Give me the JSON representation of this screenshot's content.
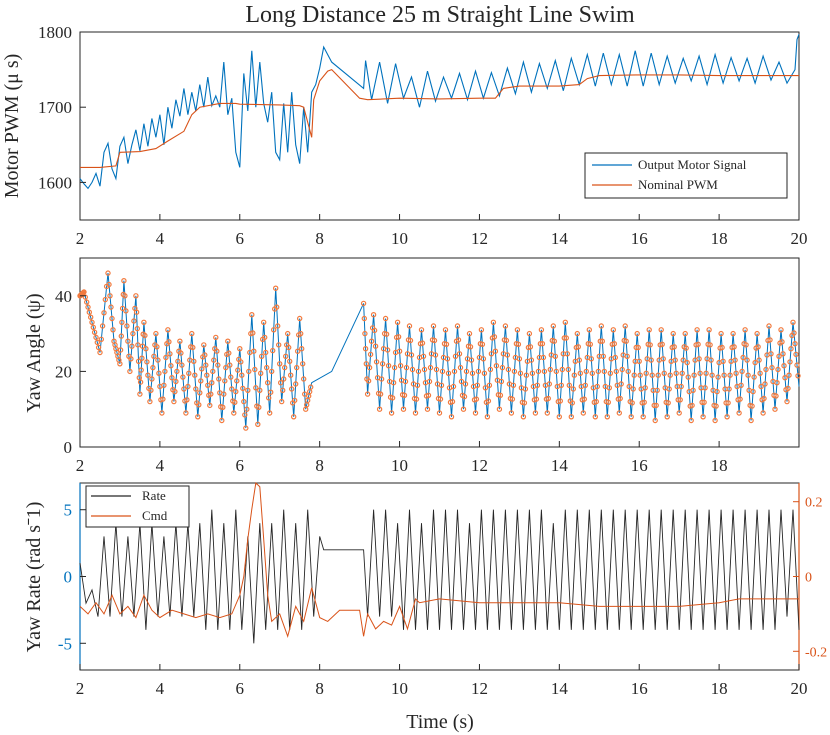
{
  "title": "Long Distance 25 m Straight Line Swim",
  "colors": {
    "blue": "#0072bd",
    "orange": "#d95319",
    "black": "#262626",
    "marker": "#f27a3e"
  },
  "chart_data": [
    {
      "type": "line",
      "ylabel": "Motor PWM (μ s)",
      "xlim": [
        2,
        20
      ],
      "ylim": [
        1550,
        1800
      ],
      "xticks": [
        "2",
        "4",
        "6",
        "8",
        "10",
        "12",
        "14",
        "16",
        "18",
        "20"
      ],
      "yticks": [
        "1600",
        "1700",
        "1800"
      ],
      "legend": {
        "position": "bottom-right",
        "entries": [
          "Output Motor Signal",
          "Nominal PWM"
        ]
      },
      "series": [
        {
          "name": "Output Motor Signal",
          "x": [
            2,
            2.1,
            2.2,
            2.3,
            2.4,
            2.5,
            2.6,
            2.7,
            2.8,
            2.9,
            3,
            3.1,
            3.2,
            3.3,
            3.4,
            3.5,
            3.6,
            3.7,
            3.8,
            3.9,
            4,
            4.1,
            4.2,
            4.3,
            4.4,
            4.5,
            4.6,
            4.7,
            4.8,
            4.9,
            5,
            5.1,
            5.2,
            5.3,
            5.4,
            5.5,
            5.6,
            5.7,
            5.8,
            5.9,
            6,
            6.1,
            6.2,
            6.3,
            6.4,
            6.5,
            6.6,
            6.7,
            6.8,
            6.9,
            7,
            7.1,
            7.2,
            7.3,
            7.4,
            7.5,
            7.6,
            7.7,
            7.8,
            7.9,
            8,
            8.1,
            8.2,
            8.3,
            9.1,
            9.15,
            9.3,
            9.5,
            9.7,
            9.9,
            10.1,
            10.3,
            10.5,
            10.7,
            10.9,
            11.1,
            11.3,
            11.5,
            11.7,
            11.9,
            12.1,
            12.3,
            12.5,
            12.7,
            12.9,
            13.1,
            13.3,
            13.5,
            13.7,
            13.9,
            14.1,
            14.3,
            14.5,
            14.7,
            14.9,
            15.1,
            15.3,
            15.5,
            15.7,
            15.9,
            16.1,
            16.3,
            16.5,
            16.7,
            16.9,
            17.1,
            17.3,
            17.5,
            17.7,
            17.9,
            18.1,
            18.3,
            18.5,
            18.7,
            18.9,
            19.1,
            19.3,
            19.5,
            19.7,
            19.9,
            19.95,
            20
          ],
          "values": [
            1605,
            1598,
            1592,
            1600,
            1612,
            1595,
            1640,
            1652,
            1618,
            1605,
            1648,
            1660,
            1625,
            1650,
            1670,
            1642,
            1678,
            1648,
            1685,
            1660,
            1690,
            1650,
            1700,
            1672,
            1710,
            1688,
            1725,
            1690,
            1720,
            1695,
            1730,
            1700,
            1740,
            1702,
            1715,
            1700,
            1760,
            1690,
            1712,
            1640,
            1620,
            1745,
            1695,
            1775,
            1700,
            1760,
            1705,
            1680,
            1720,
            1640,
            1630,
            1705,
            1640,
            1720,
            1650,
            1625,
            1700,
            1640,
            1720,
            1730,
            1752,
            1780,
            1770,
            1760,
            1725,
            1762,
            1710,
            1760,
            1705,
            1758,
            1712,
            1740,
            1700,
            1748,
            1708,
            1740,
            1712,
            1745,
            1710,
            1748,
            1712,
            1746,
            1715,
            1752,
            1718,
            1760,
            1720,
            1758,
            1725,
            1762,
            1722,
            1765,
            1730,
            1770,
            1728,
            1772,
            1730,
            1770,
            1728,
            1775,
            1728,
            1772,
            1730,
            1768,
            1732,
            1765,
            1735,
            1768,
            1730,
            1770,
            1732,
            1766,
            1735,
            1765,
            1732,
            1768,
            1736,
            1760,
            1732,
            1750,
            1790,
            1797
          ]
        },
        {
          "name": "Nominal PWM",
          "x": [
            2,
            2.5,
            2.9,
            3.0,
            3.5,
            3.9,
            4.2,
            4.6,
            4.8,
            5.0,
            5.5,
            5.9,
            6.0,
            7.0,
            7.5,
            7.6,
            7.8,
            7.85,
            8.0,
            8.2,
            8.3,
            9.0,
            9.2,
            10.0,
            11.0,
            12.0,
            12.4,
            12.6,
            13.0,
            14.0,
            14.5,
            14.7,
            15.0,
            16.0,
            17.0,
            18.0,
            19.0,
            20.0
          ],
          "values": [
            1620,
            1620,
            1622,
            1640,
            1641,
            1645,
            1655,
            1668,
            1690,
            1700,
            1705,
            1705,
            1704,
            1703,
            1702,
            1700,
            1660,
            1710,
            1735,
            1748,
            1750,
            1712,
            1710,
            1712,
            1711,
            1712,
            1712,
            1725,
            1728,
            1728,
            1730,
            1738,
            1742,
            1743,
            1743,
            1742,
            1742,
            1742
          ]
        }
      ]
    },
    {
      "type": "line",
      "ylabel": "Yaw Angle (ψ)",
      "xlim": [
        2,
        20
      ],
      "ylim": [
        0,
        50
      ],
      "xticks": [
        "2",
        "4",
        "6",
        "8",
        "10",
        "12",
        "14",
        "16",
        "18"
      ],
      "yticks": [
        "0",
        "20",
        "40"
      ],
      "series": [
        {
          "name": "Yaw Angle",
          "x": [
            2,
            2.1,
            2.3,
            2.5,
            2.7,
            2.85,
            3.0,
            3.1,
            3.25,
            3.4,
            3.5,
            3.6,
            3.75,
            3.9,
            4.05,
            4.2,
            4.35,
            4.5,
            4.65,
            4.8,
            4.95,
            5.1,
            5.25,
            5.4,
            5.55,
            5.7,
            5.85,
            6.0,
            6.15,
            6.3,
            6.45,
            6.6,
            6.75,
            6.9,
            7.05,
            7.2,
            7.35,
            7.5,
            7.65,
            7.8,
            8.3,
            9.1,
            9.2,
            9.35,
            9.5,
            9.65,
            9.8,
            9.95,
            10.1,
            10.25,
            10.4,
            10.55,
            10.7,
            10.85,
            11.0,
            11.15,
            11.3,
            11.45,
            11.6,
            11.75,
            11.9,
            12.05,
            12.2,
            12.35,
            12.5,
            12.65,
            12.8,
            12.95,
            13.1,
            13.25,
            13.4,
            13.55,
            13.7,
            13.85,
            14.0,
            14.15,
            14.3,
            14.45,
            14.6,
            14.75,
            14.9,
            15.05,
            15.2,
            15.35,
            15.5,
            15.65,
            15.8,
            15.95,
            16.1,
            16.25,
            16.4,
            16.55,
            16.7,
            16.85,
            17.0,
            17.15,
            17.3,
            17.45,
            17.6,
            17.75,
            17.9,
            18.05,
            18.2,
            18.35,
            18.5,
            18.65,
            18.8,
            18.95,
            19.1,
            19.25,
            19.4,
            19.55,
            19.7,
            19.85,
            20
          ],
          "values": [
            40,
            41,
            33,
            25,
            46,
            28,
            22,
            44,
            20,
            40,
            14,
            33,
            12,
            30,
            9,
            31,
            12,
            28,
            9,
            30,
            8,
            27,
            11,
            29,
            7,
            28,
            9,
            26,
            5,
            35,
            6,
            33,
            9,
            42,
            12,
            30,
            8,
            34,
            10,
            17,
            20,
            38,
            14,
            35,
            10,
            34,
            9,
            33,
            10,
            32,
            9,
            31,
            10,
            32,
            9,
            31,
            8,
            32,
            10,
            30,
            9,
            31,
            8,
            33,
            10,
            32,
            9,
            31,
            8,
            30,
            9,
            31,
            9,
            32,
            8,
            33,
            8,
            30,
            9,
            31,
            8,
            32,
            8,
            31,
            9,
            32,
            8,
            30,
            8,
            31,
            7,
            31,
            8,
            30,
            9,
            30,
            7,
            31,
            8,
            31,
            7,
            30,
            8,
            30,
            9,
            31,
            7,
            30,
            9,
            32,
            10,
            31,
            12,
            33,
            16
          ]
        }
      ]
    },
    {
      "type": "line",
      "xlabel": "Time (s)",
      "ylabel": "Yaw Rate (rad sˉ1)",
      "xlim": [
        2,
        20
      ],
      "ylim": [
        -7,
        7
      ],
      "ylim_right": [
        -0.25,
        0.25
      ],
      "xticks": [
        "2",
        "4",
        "6",
        "8",
        "10",
        "12",
        "14",
        "16",
        "18",
        "20"
      ],
      "yticks": [
        "-5",
        "0",
        "5"
      ],
      "yticks_right": [
        "-0.2",
        "0",
        "0.2"
      ],
      "legend": {
        "position": "top-left",
        "entries": [
          "Rate",
          "Cmd"
        ]
      },
      "series": [
        {
          "name": "Rate",
          "axis": "left",
          "x": [
            2,
            2.15,
            2.3,
            2.45,
            2.6,
            2.75,
            2.9,
            3.05,
            3.2,
            3.35,
            3.5,
            3.65,
            3.8,
            3.95,
            4.1,
            4.25,
            4.4,
            4.55,
            4.7,
            4.85,
            5.0,
            5.15,
            5.3,
            5.45,
            5.6,
            5.75,
            5.9,
            6.05,
            6.2,
            6.35,
            6.5,
            6.65,
            6.8,
            6.95,
            7.1,
            7.25,
            7.4,
            7.55,
            7.7,
            7.85,
            8.0,
            8.1,
            9.1,
            9.2,
            9.35,
            9.5,
            9.65,
            9.8,
            9.95,
            10.1,
            10.25,
            10.4,
            10.55,
            10.7,
            10.85,
            11.0,
            11.15,
            11.3,
            11.45,
            11.6,
            11.75,
            11.9,
            12.05,
            12.2,
            12.35,
            12.5,
            12.65,
            12.8,
            12.95,
            13.1,
            13.25,
            13.4,
            13.55,
            13.7,
            13.85,
            14.0,
            14.15,
            14.3,
            14.45,
            14.6,
            14.75,
            14.9,
            15.05,
            15.2,
            15.35,
            15.5,
            15.65,
            15.8,
            15.95,
            16.1,
            16.25,
            16.4,
            16.55,
            16.7,
            16.85,
            17.0,
            17.15,
            17.3,
            17.45,
            17.6,
            17.75,
            17.9,
            18.05,
            18.2,
            18.35,
            18.5,
            18.65,
            18.8,
            18.95,
            19.1,
            19.25,
            19.4,
            19.55,
            19.7,
            19.85,
            20
          ],
          "values": [
            1,
            -2,
            -1,
            -3,
            3,
            -3,
            4,
            -3,
            3,
            -3,
            4,
            -4,
            4,
            -3,
            3,
            -3,
            4,
            -3,
            4,
            -3,
            4,
            -4,
            5,
            -4,
            4,
            -4,
            5,
            -4,
            3,
            -5,
            4,
            -4,
            4,
            -4,
            5,
            -4,
            4,
            -4,
            5,
            -3,
            3,
            2,
            2,
            -3,
            5,
            -3,
            5,
            -3,
            4,
            -4,
            5,
            -4,
            4,
            -4,
            5,
            -4,
            5,
            -4,
            5,
            -4,
            4,
            -4,
            5,
            -4,
            5,
            -4,
            5,
            -4,
            5,
            -4,
            5,
            -4,
            5,
            -4,
            4,
            -4,
            5,
            -4,
            5,
            -4,
            5,
            -4,
            5,
            -4,
            5,
            -4,
            5,
            -4,
            5,
            -4,
            5,
            -4,
            5,
            -4,
            5,
            -4,
            5,
            -4,
            5,
            -4,
            5,
            -4,
            5,
            -4,
            5,
            -4,
            5,
            -4,
            5,
            -4,
            5,
            -4,
            5,
            -3,
            5,
            -4
          ]
        },
        {
          "name": "Cmd",
          "axis": "right",
          "x": [
            2,
            2.2,
            2.4,
            2.6,
            2.8,
            3.0,
            3.2,
            3.4,
            3.6,
            3.8,
            4.0,
            4.3,
            4.6,
            4.9,
            5.2,
            5.5,
            5.8,
            6.0,
            6.1,
            6.2,
            6.3,
            6.4,
            6.5,
            6.6,
            6.7,
            6.8,
            7.0,
            7.2,
            7.4,
            7.6,
            7.8,
            8.0,
            8.2,
            8.5,
            9.0,
            9.1,
            9.2,
            9.4,
            9.6,
            9.8,
            10.0,
            10.2,
            10.4,
            10.5,
            11.0,
            12.0,
            13.0,
            14.0,
            15.0,
            16.0,
            17.0,
            18.0,
            18.5,
            19.0,
            20.0
          ],
          "values": [
            -0.08,
            -0.1,
            -0.07,
            -0.1,
            -0.05,
            -0.1,
            -0.08,
            -0.11,
            -0.05,
            -0.09,
            -0.11,
            -0.09,
            -0.1,
            -0.11,
            -0.1,
            -0.11,
            -0.1,
            -0.05,
            0.0,
            0.1,
            0.18,
            0.25,
            0.24,
            0.1,
            -0.05,
            -0.12,
            -0.1,
            -0.16,
            -0.08,
            -0.12,
            -0.03,
            -0.11,
            -0.12,
            -0.09,
            -0.09,
            -0.16,
            -0.1,
            -0.14,
            -0.12,
            -0.13,
            -0.08,
            -0.14,
            -0.06,
            -0.07,
            -0.06,
            -0.07,
            -0.07,
            -0.07,
            -0.08,
            -0.08,
            -0.08,
            -0.07,
            -0.06,
            -0.06,
            -0.06
          ]
        }
      ]
    }
  ]
}
